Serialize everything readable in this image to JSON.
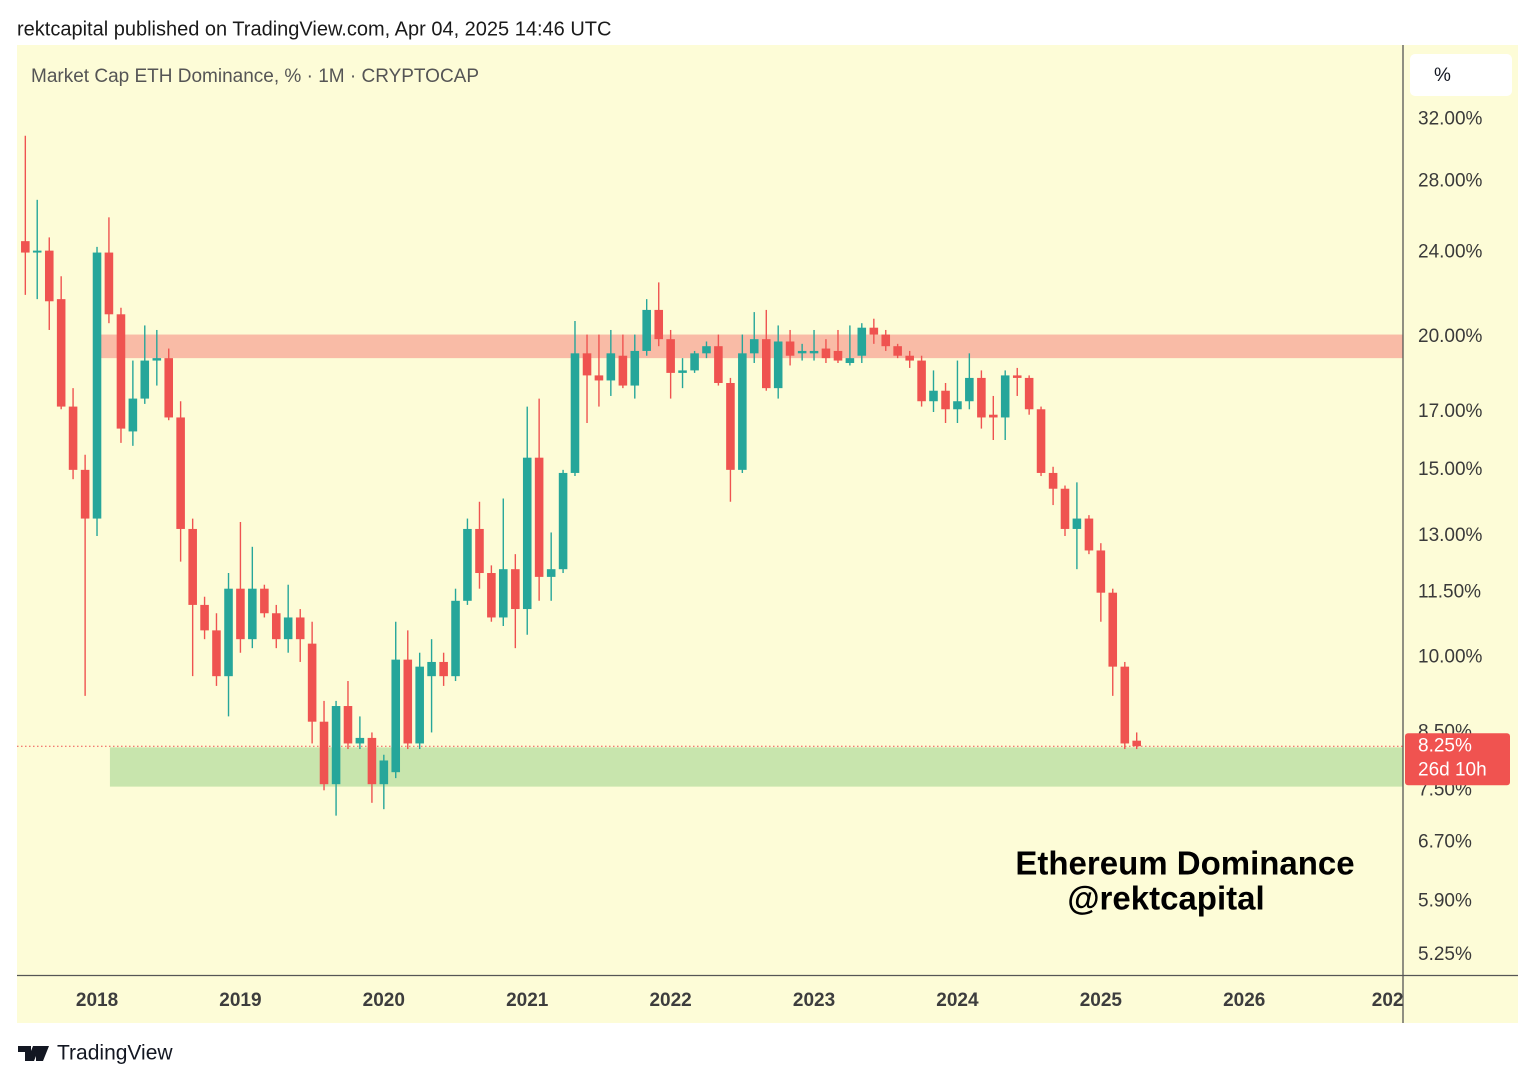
{
  "header": {
    "text": "rektcapital published on TradingView.com, Apr 04, 2025 14:46 UTC"
  },
  "footer": {
    "brand": "TradingView"
  },
  "chart_data": {
    "type": "candlestick",
    "title": "Market Cap ETH Dominance, % · 1M · CRYPTOCAP",
    "scale_button": "%",
    "annotations": [
      "Ethereum Dominance",
      "@rektcapital"
    ],
    "log_scale": true,
    "grid": false,
    "up_color": "#26a69a",
    "down_color": "#ef5350",
    "background": "#fdfcd7",
    "x": [
      2017.5,
      2017.583,
      2017.667,
      2017.75,
      2017.833,
      2017.917,
      2018,
      2018.083,
      2018.167,
      2018.25,
      2018.333,
      2018.417,
      2018.5,
      2018.583,
      2018.667,
      2018.75,
      2018.833,
      2018.917,
      2019,
      2019.083,
      2019.167,
      2019.25,
      2019.333,
      2019.417,
      2019.5,
      2019.583,
      2019.667,
      2019.75,
      2019.833,
      2019.917,
      2020,
      2020.083,
      2020.167,
      2020.25,
      2020.333,
      2020.417,
      2020.5,
      2020.583,
      2020.667,
      2020.75,
      2020.833,
      2020.917,
      2021,
      2021.083,
      2021.167,
      2021.25,
      2021.333,
      2021.417,
      2021.5,
      2021.583,
      2021.667,
      2021.75,
      2021.833,
      2021.917,
      2022,
      2022.083,
      2022.167,
      2022.25,
      2022.333,
      2022.417,
      2022.5,
      2022.583,
      2022.667,
      2022.75,
      2022.833,
      2022.917,
      2023,
      2023.083,
      2023.167,
      2023.25,
      2023.333,
      2023.417,
      2023.5,
      2023.583,
      2023.667,
      2023.75,
      2023.833,
      2023.917,
      2024,
      2024.083,
      2024.167,
      2024.25,
      2024.333,
      2024.417,
      2024.5,
      2024.583,
      2024.667,
      2024.75,
      2024.833,
      2024.917,
      2025,
      2025.083,
      2025.167,
      2025.25
    ],
    "open": [
      24.6,
      24.0,
      24.1,
      21.7,
      17.2,
      15.0,
      13.5,
      24.0,
      21.0,
      16.3,
      17.5,
      19.0,
      19.1,
      16.8,
      13.2,
      11.2,
      10.6,
      9.6,
      11.6,
      10.4,
      11.6,
      11.0,
      10.4,
      10.9,
      10.3,
      8.7,
      7.6,
      9.0,
      8.3,
      8.4,
      7.6,
      7.8,
      9.95,
      8.3,
      9.6,
      9.9,
      9.6,
      11.3,
      13.2,
      12.0,
      10.9,
      12.1,
      11.1,
      15.4,
      11.9,
      12.1,
      14.9,
      19.3,
      18.4,
      18.2,
      19.2,
      18.0,
      19.4,
      21.2,
      19.9,
      18.5,
      18.6,
      19.3,
      19.6,
      18.1,
      15.0,
      19.3,
      19.9,
      17.9,
      19.8,
      19.3,
      19.3,
      19.5,
      19.4,
      18.9,
      19.2,
      20.4,
      20.1,
      19.6,
      19.2,
      19.0,
      17.4,
      17.8,
      17.1,
      17.4,
      18.3,
      16.9,
      16.8,
      18.4,
      18.3,
      17.1,
      14.9,
      14.4,
      13.2,
      13.5,
      12.6,
      11.5,
      9.8,
      8.35
    ],
    "high": [
      30.9,
      26.9,
      24.8,
      22.8,
      17.9,
      15.5,
      24.3,
      25.9,
      21.3,
      19.0,
      20.5,
      20.3,
      19.5,
      17.4,
      13.5,
      11.4,
      11.0,
      12.0,
      13.4,
      12.7,
      11.7,
      11.2,
      11.7,
      11.1,
      10.8,
      9.1,
      9.1,
      9.5,
      8.8,
      8.5,
      8.1,
      10.8,
      10.6,
      10.1,
      10.4,
      10.1,
      11.6,
      13.5,
      14.0,
      12.2,
      14.1,
      12.5,
      17.2,
      17.5,
      13.1,
      15.0,
      20.7,
      20.1,
      20.1,
      20.3,
      20.1,
      20.1,
      21.7,
      22.5,
      20.3,
      19.1,
      19.4,
      19.8,
      20.1,
      18.3,
      20.1,
      21.1,
      21.2,
      20.5,
      20.3,
      19.7,
      20.3,
      19.9,
      20.3,
      20.5,
      20.6,
      20.8,
      20.3,
      19.7,
      19.4,
      19.2,
      18.6,
      18.1,
      19.0,
      19.3,
      18.6,
      17.6,
      18.6,
      18.7,
      18.4,
      17.2,
      15.1,
      14.5,
      14.6,
      13.6,
      12.8,
      11.6,
      9.9,
      8.5
    ],
    "low": [
      21.9,
      21.7,
      20.3,
      17.1,
      14.7,
      9.2,
      13.0,
      20.6,
      15.9,
      15.8,
      17.3,
      18.0,
      16.7,
      12.3,
      9.6,
      10.4,
      9.4,
      8.8,
      10.1,
      10.2,
      10.9,
      10.2,
      10.1,
      9.9,
      8.3,
      7.5,
      7.1,
      8.2,
      8.2,
      7.3,
      7.2,
      7.7,
      8.2,
      8.2,
      8.5,
      9.4,
      9.5,
      11.2,
      11.6,
      10.8,
      10.7,
      10.2,
      10.5,
      11.3,
      11.3,
      12.0,
      14.8,
      16.6,
      17.2,
      17.6,
      17.9,
      17.5,
      19.2,
      19.6,
      17.5,
      17.9,
      18.5,
      19.1,
      18.0,
      14.0,
      14.9,
      18.9,
      17.8,
      17.5,
      18.8,
      19.0,
      19.0,
      18.9,
      18.9,
      18.8,
      18.9,
      19.7,
      19.4,
      19.1,
      18.7,
      17.2,
      17.0,
      16.6,
      16.6,
      17.1,
      16.4,
      16.0,
      16.0,
      17.6,
      16.9,
      14.8,
      13.9,
      13.0,
      12.1,
      12.5,
      10.8,
      9.2,
      8.2,
      8.2
    ],
    "close": [
      24.0,
      24.1,
      21.6,
      17.2,
      15.0,
      13.5,
      24.0,
      21.0,
      16.4,
      17.5,
      19.0,
      19.1,
      16.8,
      13.2,
      11.2,
      10.6,
      9.6,
      11.6,
      10.4,
      11.6,
      11.0,
      10.4,
      10.9,
      10.4,
      8.7,
      7.6,
      9.0,
      8.3,
      8.4,
      7.6,
      8.0,
      9.95,
      8.3,
      9.8,
      9.9,
      9.6,
      11.3,
      13.2,
      12.0,
      10.9,
      12.1,
      11.1,
      15.4,
      11.9,
      12.1,
      14.9,
      19.3,
      18.4,
      18.2,
      19.3,
      18.0,
      19.4,
      21.2,
      19.9,
      18.5,
      18.6,
      19.3,
      19.6,
      18.1,
      15.0,
      19.3,
      19.9,
      17.9,
      19.8,
      19.2,
      19.4,
      19.4,
      19.1,
      19.0,
      19.1,
      20.4,
      20.1,
      19.6,
      19.2,
      19.0,
      17.4,
      17.8,
      17.1,
      17.4,
      18.3,
      16.8,
      16.8,
      18.4,
      18.3,
      17.1,
      14.9,
      14.4,
      13.2,
      13.5,
      12.6,
      11.5,
      9.8,
      8.3,
      8.25
    ],
    "bands": [
      {
        "y": [
          19.1,
          20.1
        ],
        "x_from": 2018.02,
        "color": "#f9bba6"
      },
      {
        "y": [
          7.56,
          8.23
        ],
        "x_from": 2018.09,
        "color": "#c8e5ad"
      }
    ],
    "last_price": 8.25,
    "last_price_label": "8.25%",
    "countdown": "26d 10h",
    "last_price_color": "#f05350",
    "xlim": [
      2017.442,
      2027.107
    ],
    "xticks": [
      2018,
      2019,
      2020,
      2021,
      2022,
      2023,
      2024,
      2025,
      2026,
      {
        "value": 2027,
        "label": "202"
      }
    ],
    "ylim": [
      5.03,
      37.6
    ],
    "yticks": [
      {
        "value": 32,
        "label": "32.00%"
      },
      {
        "value": 28,
        "label": "28.00%"
      },
      {
        "value": 24,
        "label": "24.00%"
      },
      {
        "value": 20,
        "label": "20.00%"
      },
      {
        "value": 17,
        "label": "17.00%"
      },
      {
        "value": 15,
        "label": "15.00%"
      },
      {
        "value": 13,
        "label": "13.00%"
      },
      {
        "value": 11.5,
        "label": "11.50%"
      },
      {
        "value": 10,
        "label": "10.00%"
      },
      {
        "value": 8.5,
        "label": "8.50%"
      },
      {
        "value": 7.5,
        "label": "7.50%"
      },
      {
        "value": 6.7,
        "label": "6.70%"
      },
      {
        "value": 5.9,
        "label": "5.90%"
      },
      {
        "value": 5.25,
        "label": "5.25%"
      }
    ]
  }
}
